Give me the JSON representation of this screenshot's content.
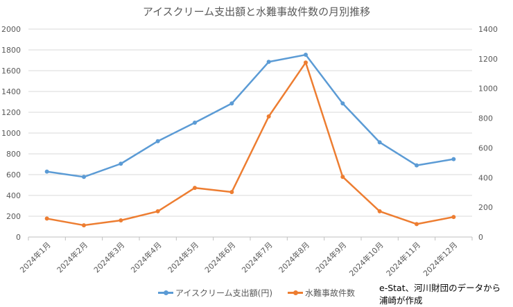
{
  "chart_data": {
    "type": "line",
    "title": "アイスクリーム支出額と水難事故件数の月別推移",
    "categories": [
      "2024年1月",
      "2024年2月",
      "2024年3月",
      "2024年4月",
      "2024年5月",
      "2024年6月",
      "2024年7月",
      "2024年8月",
      "2024年9月",
      "2024年10月",
      "2024年11月",
      "2024年12月"
    ],
    "y_left": {
      "range": [
        0,
        2000
      ],
      "ticks": [
        0,
        200,
        400,
        600,
        800,
        1000,
        1200,
        1400,
        1600,
        1800,
        2000
      ]
    },
    "y_right": {
      "range": [
        0,
        1400
      ],
      "ticks": [
        0,
        200,
        400,
        600,
        800,
        1000,
        1200,
        1400
      ]
    },
    "grid": true,
    "legend_position": "bottom",
    "series": [
      {
        "name": "アイスクリーム支出額(円)",
        "axis": "left",
        "color": "#5B9BD5",
        "values": [
          629,
          578,
          705,
          922,
          1100,
          1285,
          1685,
          1753,
          1285,
          911,
          689,
          749
        ]
      },
      {
        "name": "水難事故件数",
        "axis": "right",
        "color": "#ED7D31",
        "values": [
          124,
          79,
          112,
          173,
          331,
          303,
          812,
          1175,
          405,
          173,
          87,
          135
        ]
      }
    ]
  },
  "note": {
    "line1": "e-Stat、河川財団のデータから",
    "line2": "浦崎が作成"
  }
}
